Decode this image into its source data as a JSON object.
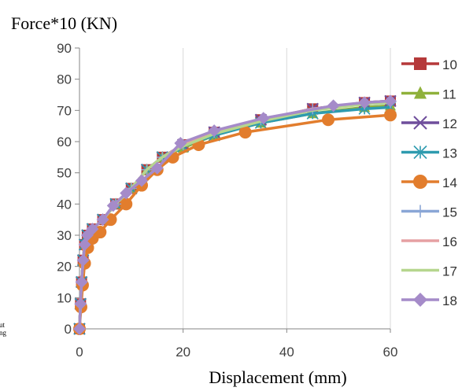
{
  "chart_data": {
    "type": "line",
    "ylabel": "Force*10 (KN)",
    "xlabel": "Displacement (mm)",
    "xlim": [
      0,
      60
    ],
    "ylim": [
      0,
      90
    ],
    "xticks": [
      "0",
      "20",
      "40",
      "60"
    ],
    "yticks": [
      "0",
      "10",
      "20",
      "30",
      "40",
      "50",
      "60",
      "70",
      "80",
      "90"
    ],
    "grid": "vertical",
    "legend": "right",
    "margin_fragments": [
      "ut",
      "ng"
    ],
    "series": [
      {
        "name": "10",
        "color": "#B5393A",
        "marker": "square",
        "x": [
          0,
          0.2,
          0.4,
          0.7,
          1.0,
          1.5,
          2.5,
          4.5,
          7,
          10,
          13,
          16,
          20,
          26,
          35,
          45,
          55,
          60
        ],
        "y": [
          0,
          8,
          15,
          22,
          27,
          30,
          32,
          35,
          40,
          45,
          51,
          55,
          59,
          63,
          67,
          70.5,
          72.5,
          73
        ]
      },
      {
        "name": "11",
        "color": "#8FB13B",
        "marker": "triangle",
        "x": [
          0,
          0.2,
          0.4,
          0.7,
          1.0,
          1.5,
          2.5,
          4.5,
          7,
          10,
          13,
          16,
          20,
          26,
          35,
          45,
          55,
          60
        ],
        "y": [
          0,
          8,
          15,
          22,
          27,
          30,
          32,
          35,
          40,
          45,
          51,
          55,
          58,
          62,
          66,
          69,
          71,
          71.5
        ]
      },
      {
        "name": "12",
        "color": "#6F4E9C",
        "marker": "x",
        "x": [
          0,
          0.2,
          0.4,
          0.7,
          1.0,
          1.5,
          2.5,
          4.5,
          7,
          10,
          13,
          16,
          20,
          26,
          35,
          45,
          55,
          60
        ],
        "y": [
          0,
          8,
          15,
          22,
          27,
          30,
          32,
          35,
          40,
          45,
          51,
          55,
          59,
          63,
          67,
          70.5,
          72.5,
          73
        ]
      },
      {
        "name": "13",
        "color": "#2E9BAF",
        "marker": "asterisk",
        "x": [
          0,
          0.2,
          0.4,
          0.7,
          1.0,
          1.5,
          2.5,
          4.5,
          7,
          10,
          13,
          16,
          20,
          26,
          35,
          45,
          55,
          60
        ],
        "y": [
          0,
          8,
          15,
          22,
          27,
          30,
          32,
          35,
          40,
          45,
          51,
          55,
          58.5,
          62,
          66,
          69,
          70.5,
          71
        ]
      },
      {
        "name": "14",
        "color": "#E27D2D",
        "marker": "circle",
        "x": [
          0,
          0.3,
          0.6,
          1.0,
          1.6,
          2.5,
          4,
          6,
          9,
          12,
          15,
          18,
          23,
          32,
          48,
          60
        ],
        "y": [
          0,
          7,
          14,
          21,
          26,
          29,
          31,
          35,
          40,
          46,
          51,
          55,
          59,
          63,
          67,
          68.5
        ]
      },
      {
        "name": "15",
        "color": "#8AA6D6",
        "marker": "plus",
        "x": [
          0,
          0.2,
          0.4,
          0.7,
          1.0,
          1.5,
          2.5,
          4.5,
          7,
          10,
          13,
          16,
          20,
          26,
          35,
          45,
          55,
          60
        ],
        "y": [
          0,
          8,
          15,
          22,
          27,
          30,
          32,
          35,
          40,
          45,
          51,
          55,
          59,
          63,
          67,
          70.5,
          72,
          72.5
        ]
      },
      {
        "name": "16",
        "color": "#E6A0A3",
        "marker": "none",
        "x": [
          0,
          0.2,
          0.4,
          0.7,
          1.0,
          1.5,
          2.5,
          4.5,
          7,
          10,
          13,
          16,
          20,
          26,
          35,
          45,
          55,
          60
        ],
        "y": [
          0,
          8,
          15,
          22,
          27,
          30,
          32,
          35,
          40,
          45,
          51,
          55,
          59,
          63,
          67,
          70.5,
          72.5,
          73
        ]
      },
      {
        "name": "17",
        "color": "#B6D68E",
        "marker": "none",
        "x": [
          0,
          0.2,
          0.4,
          0.7,
          1.0,
          1.5,
          2.5,
          4.5,
          7,
          10,
          13,
          16,
          20,
          26,
          35,
          45,
          55,
          60
        ],
        "y": [
          0,
          8,
          15,
          22,
          27,
          30,
          32,
          35,
          40,
          45,
          51,
          55,
          58.5,
          62.5,
          66.5,
          70,
          72,
          72.5
        ]
      },
      {
        "name": "18",
        "color": "#A58BC9",
        "marker": "diamond",
        "x": [
          0,
          0.2,
          0.4,
          0.7,
          1.0,
          1.5,
          2.5,
          4.5,
          6.5,
          9,
          12,
          15,
          19.5,
          26,
          35.5,
          49,
          55,
          60
        ],
        "y": [
          0,
          8,
          15,
          22,
          27,
          30,
          32,
          35,
          39.5,
          43.5,
          47.5,
          51.5,
          59.5,
          63.5,
          67.5,
          71.5,
          72.5,
          73
        ]
      }
    ]
  }
}
